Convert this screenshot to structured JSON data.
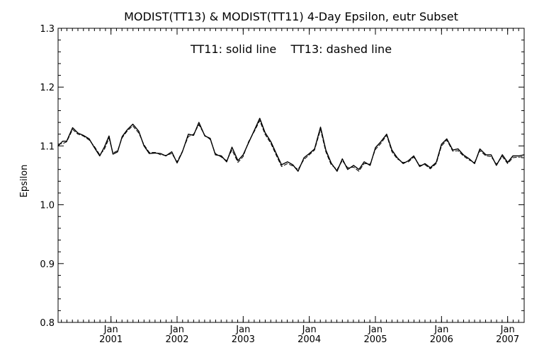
{
  "chart_data": {
    "type": "line",
    "title": "MODIST(TT13) & MODIST(TT11) 4-Day Epsilon, eutr Subset",
    "annotation": "TT11: solid line    TT13: dashed line",
    "xlabel": "",
    "ylabel": "Epsilon",
    "xlim": [
      2000.2,
      2007.25
    ],
    "ylim": [
      0.8,
      1.3
    ],
    "y_ticks": [
      0.8,
      0.9,
      1.0,
      1.1,
      1.2,
      1.3
    ],
    "y_tick_labels": [
      "0.8",
      "0.9",
      "1.0",
      "1.1",
      "1.2",
      "1.3"
    ],
    "x_ticks": [
      {
        "value": 2001,
        "month": "Jan",
        "year": "2001"
      },
      {
        "value": 2002,
        "month": "Jan",
        "year": "2002"
      },
      {
        "value": 2003,
        "month": "Jan",
        "year": "2003"
      },
      {
        "value": 2004,
        "month": "Jan",
        "year": "2004"
      },
      {
        "value": 2005,
        "month": "Jan",
        "year": "2005"
      },
      {
        "value": 2006,
        "month": "Jan",
        "year": "2006"
      },
      {
        "value": 2007,
        "month": "Jan",
        "year": "2007"
      }
    ],
    "x_minor_per_major": 12,
    "y_minor_per_major": 5,
    "grid": false,
    "legend": "none",
    "x": [
      2000.2,
      2000.27,
      2000.33,
      2000.42,
      2000.5,
      2000.58,
      2000.67,
      2000.75,
      2000.83,
      2000.9,
      2000.97,
      2001.03,
      2001.1,
      2001.17,
      2001.25,
      2001.33,
      2001.42,
      2001.5,
      2001.58,
      2001.67,
      2001.75,
      2001.83,
      2001.92,
      2002.0,
      2002.08,
      2002.17,
      2002.25,
      2002.33,
      2002.42,
      2002.5,
      2002.58,
      2002.67,
      2002.75,
      2002.83,
      2002.92,
      2003.0,
      2003.08,
      2003.17,
      2003.25,
      2003.33,
      2003.42,
      2003.5,
      2003.58,
      2003.67,
      2003.75,
      2003.83,
      2003.92,
      2004.0,
      2004.08,
      2004.17,
      2004.25,
      2004.33,
      2004.42,
      2004.5,
      2004.58,
      2004.67,
      2004.75,
      2004.83,
      2004.92,
      2005.0,
      2005.08,
      2005.17,
      2005.25,
      2005.33,
      2005.42,
      2005.5,
      2005.58,
      2005.67,
      2005.75,
      2005.83,
      2005.92,
      2006.0,
      2006.08,
      2006.17,
      2006.25,
      2006.33,
      2006.42,
      2006.5,
      2006.58,
      2006.67,
      2006.75,
      2006.83,
      2006.92,
      2007.0,
      2007.08,
      2007.17,
      2007.25
    ],
    "series": [
      {
        "name": "TT11",
        "style": "solid",
        "values": [
          1.1,
          1.108,
          1.108,
          1.131,
          1.122,
          1.118,
          1.112,
          1.097,
          1.083,
          1.098,
          1.117,
          1.086,
          1.09,
          1.116,
          1.128,
          1.137,
          1.125,
          1.1,
          1.087,
          1.088,
          1.087,
          1.083,
          1.09,
          1.071,
          1.09,
          1.12,
          1.118,
          1.14,
          1.117,
          1.113,
          1.085,
          1.083,
          1.073,
          1.098,
          1.075,
          1.085,
          1.105,
          1.127,
          1.147,
          1.123,
          1.107,
          1.087,
          1.068,
          1.073,
          1.068,
          1.057,
          1.08,
          1.087,
          1.095,
          1.132,
          1.093,
          1.071,
          1.057,
          1.078,
          1.06,
          1.067,
          1.06,
          1.073,
          1.067,
          1.097,
          1.107,
          1.12,
          1.093,
          1.08,
          1.07,
          1.075,
          1.083,
          1.065,
          1.07,
          1.063,
          1.072,
          1.103,
          1.112,
          1.093,
          1.095,
          1.085,
          1.078,
          1.07,
          1.095,
          1.085,
          1.085,
          1.067,
          1.085,
          1.072,
          1.083,
          1.083,
          1.085
        ]
      },
      {
        "name": "TT13",
        "style": "dashed",
        "values": [
          1.103,
          1.104,
          1.107,
          1.128,
          1.12,
          1.117,
          1.11,
          1.099,
          1.085,
          1.094,
          1.113,
          1.088,
          1.092,
          1.114,
          1.126,
          1.134,
          1.122,
          1.102,
          1.089,
          1.089,
          1.085,
          1.084,
          1.087,
          1.073,
          1.091,
          1.116,
          1.12,
          1.136,
          1.118,
          1.111,
          1.087,
          1.081,
          1.075,
          1.093,
          1.072,
          1.082,
          1.107,
          1.125,
          1.143,
          1.12,
          1.104,
          1.084,
          1.065,
          1.07,
          1.066,
          1.06,
          1.077,
          1.085,
          1.093,
          1.128,
          1.09,
          1.068,
          1.06,
          1.075,
          1.063,
          1.064,
          1.057,
          1.07,
          1.069,
          1.094,
          1.104,
          1.118,
          1.09,
          1.078,
          1.072,
          1.073,
          1.081,
          1.067,
          1.068,
          1.061,
          1.07,
          1.1,
          1.11,
          1.091,
          1.092,
          1.083,
          1.076,
          1.072,
          1.092,
          1.083,
          1.082,
          1.069,
          1.082,
          1.07,
          1.08,
          1.081,
          1.082
        ]
      }
    ]
  }
}
